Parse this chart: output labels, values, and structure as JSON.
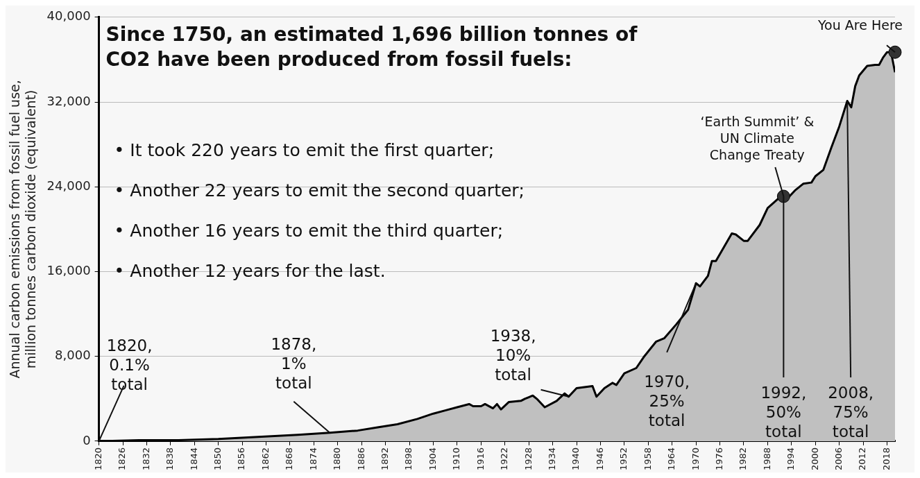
{
  "chart_data": {
    "type": "area",
    "title": "Since 1750, an estimated 1,696 billion tonnes of CO2 have been produced from fossil fuels:",
    "ylabel": "Annual carbon emissions from fossil fuel use, million tonnes carbon dioxide (equivalent)",
    "xlim": [
      1820,
      2020
    ],
    "xticks": [
      1820,
      1826,
      1832,
      1838,
      1844,
      1850,
      1856,
      1862,
      1868,
      1874,
      1880,
      1886,
      1892,
      1898,
      1904,
      1910,
      1916,
      1922,
      1928,
      1934,
      1940,
      1946,
      1952,
      1958,
      1964,
      1970,
      1976,
      1982,
      1988,
      1994,
      2000,
      2006,
      2012,
      2018
    ],
    "ylim": [
      0,
      40000
    ],
    "yticks": [
      {
        "value": 0,
        "label": "0"
      },
      {
        "value": 8000,
        "label": "8,000"
      },
      {
        "value": 16000,
        "label": "16,000"
      },
      {
        "value": 24000,
        "label": "24,000"
      },
      {
        "value": 32000,
        "label": "32,000"
      },
      {
        "value": 40000,
        "label": "40,000"
      }
    ],
    "grid": "y",
    "legend": false,
    "series": [
      {
        "color": "#c0c0c0",
        "x": [
          1820,
          1830,
          1840,
          1850,
          1860,
          1870,
          1878,
          1885,
          1890,
          1895,
          1900,
          1904,
          1907,
          1910,
          1913,
          1914,
          1916,
          1917,
          1919,
          1920,
          1921,
          1923,
          1926,
          1927,
          1929,
          1930,
          1932,
          1935,
          1937,
          1938,
          1940,
          1944,
          1945,
          1947,
          1949,
          1950,
          1952,
          1955,
          1957,
          1960,
          1962,
          1965,
          1968,
          1970,
          1971,
          1973,
          1974,
          1975,
          1979,
          1980,
          1982,
          1983,
          1986,
          1988,
          1991,
          1992,
          1993,
          1995,
          1997,
          1999,
          2000,
          2002,
          2004,
          2006,
          2008,
          2009,
          2010,
          2011,
          2013,
          2015,
          2016,
          2017,
          2018,
          2019,
          2020
        ],
        "values": [
          0,
          100,
          100,
          200,
          400,
          600,
          800,
          1000,
          1300,
          1600,
          2100,
          2600,
          2900,
          3200,
          3500,
          3300,
          3300,
          3500,
          3100,
          3500,
          3000,
          3700,
          3800,
          4000,
          4300,
          4000,
          3200,
          3800,
          4500,
          4200,
          5000,
          5200,
          4200,
          5000,
          5500,
          5300,
          6400,
          6900,
          8000,
          9400,
          9700,
          11000,
          12400,
          14900,
          14600,
          15600,
          17000,
          17000,
          19600,
          19500,
          18900,
          18900,
          20400,
          22000,
          23000,
          23100,
          22900,
          23700,
          24300,
          24400,
          25000,
          25600,
          27700,
          29700,
          32100,
          31500,
          33500,
          34500,
          35400,
          35500,
          35500,
          36200,
          36700,
          36700,
          34800
        ]
      },
      {
        "type": "scatter",
        "color": "#333333",
        "x": [
          1992,
          2020
        ],
        "values": [
          23100,
          36700
        ],
        "marker": "circle"
      }
    ],
    "annotations": [
      "• It took 220 years to emit the first quarter;",
      "• Another 22 years to emit the second quarter;",
      "• Another 16 years to emit the third quarter;",
      "• Another 12 years for the last.",
      {
        "text": "1820, 0.1% total",
        "x": 1820,
        "y": 0
      },
      {
        "text": "1878, 1% total",
        "x": 1878,
        "y": 800
      },
      {
        "text": "1938, 10% total",
        "x": 1938,
        "y": 4200
      },
      {
        "text": "1970, 25% total",
        "x": 1970,
        "y": 14900
      },
      {
        "text": "1992, 50% total",
        "x": 1992,
        "y": 23100
      },
      {
        "text": "2008, 75% total",
        "x": 2008,
        "y": 32100
      },
      {
        "text": "‘Earth Summit’ & UN Climate Change Treaty",
        "x": 1992,
        "y": 23100
      },
      {
        "text": "You Are Here",
        "x": 2020,
        "y": 36700
      }
    ]
  }
}
